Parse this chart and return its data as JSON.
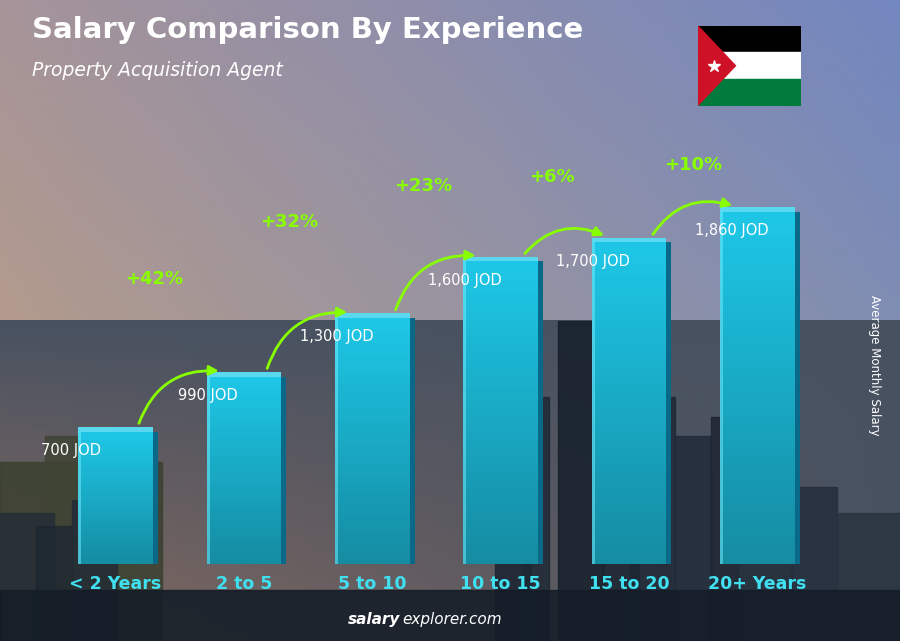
{
  "title": "Salary Comparison By Experience",
  "subtitle": "Property Acquisition Agent",
  "categories": [
    "< 2 Years",
    "2 to 5",
    "5 to 10",
    "10 to 15",
    "15 to 20",
    "20+ Years"
  ],
  "values": [
    700,
    990,
    1300,
    1600,
    1700,
    1860
  ],
  "value_labels": [
    "700 JOD",
    "990 JOD",
    "1,300 JOD",
    "1,600 JOD",
    "1,700 JOD",
    "1,860 JOD"
  ],
  "pct_changes": [
    "+42%",
    "+32%",
    "+23%",
    "+6%",
    "+10%"
  ],
  "bar_color_face": "#1ec8e8",
  "bar_color_side": "#0e8ab0",
  "bar_color_dark": "#0a6080",
  "bg_sky_top": "#7a9ab0",
  "bg_sky_bottom": "#5a7a90",
  "bg_city_color": "#2a3a4a",
  "bg_warm_left": "#a07050",
  "title_color": "#ffffff",
  "subtitle_color": "#ffffff",
  "value_label_color": "#ffffff",
  "pct_color": "#88ff00",
  "xlabel_color": "#40e0f0",
  "ylabel": "Average Monthly Salary",
  "footer_bold": "salary",
  "footer_normal": "explorer.com",
  "ylim_max": 2100,
  "bar_width": 0.58
}
